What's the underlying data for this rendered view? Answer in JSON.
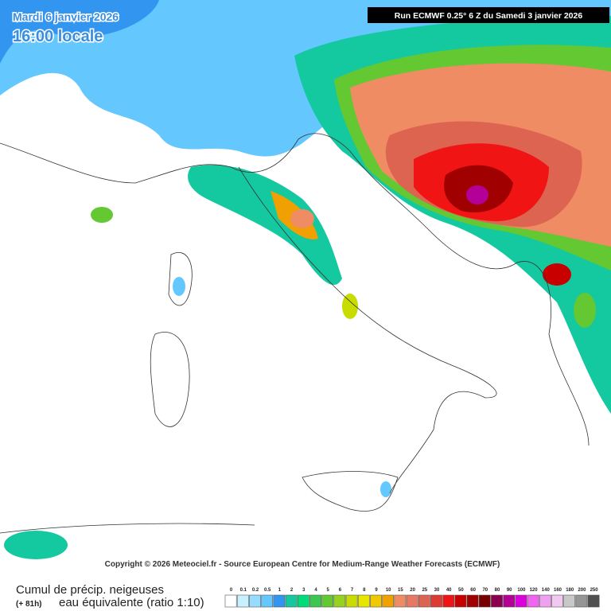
{
  "header": {
    "date": "Mardi 6 janvier 2026",
    "time": "16:00 locale",
    "run": "Run ECMWF 0.25° 6 Z du Samedi 3 janvier 2026"
  },
  "copyright": "Copyright © 2026 Meteociel.fr - Source European Centre for Medium-Range Weather Forecasts (ECMWF)",
  "legend": {
    "title": "Cumul de précip. neigeuses",
    "range": "(+ 81h)",
    "subtitle": "eau équivalente (ratio 1:10)",
    "items": [
      {
        "value": 0,
        "color": "#ffffff"
      },
      {
        "value": 0.1,
        "color": "#c8f0ff"
      },
      {
        "value": 0.2,
        "color": "#96dcff"
      },
      {
        "value": 0.5,
        "color": "#64c8ff"
      },
      {
        "value": 1,
        "color": "#3296f0"
      },
      {
        "value": 2,
        "color": "#14c8a0"
      },
      {
        "value": 3,
        "color": "#00dc78"
      },
      {
        "value": 4,
        "color": "#3cc850"
      },
      {
        "value": 5,
        "color": "#64c832"
      },
      {
        "value": 6,
        "color": "#96d21e"
      },
      {
        "value": 7,
        "color": "#c8dc00"
      },
      {
        "value": 8,
        "color": "#e6e600"
      },
      {
        "value": 9,
        "color": "#f0c800"
      },
      {
        "value": 10,
        "color": "#f0a000"
      },
      {
        "value": 15,
        "color": "#f08c64"
      },
      {
        "value": 20,
        "color": "#e67864"
      },
      {
        "value": 25,
        "color": "#dc6450"
      },
      {
        "value": 30,
        "color": "#dc3c32"
      },
      {
        "value": 40,
        "color": "#f01414"
      },
      {
        "value": 50,
        "color": "#c80000"
      },
      {
        "value": 60,
        "color": "#a00000"
      },
      {
        "value": 70,
        "color": "#780000"
      },
      {
        "value": 80,
        "color": "#8c0050"
      },
      {
        "value": 90,
        "color": "#b40096"
      },
      {
        "value": 100,
        "color": "#dc00dc"
      },
      {
        "value": 120,
        "color": "#f064f0"
      },
      {
        "value": 140,
        "color": "#f0a0f0"
      },
      {
        "value": 160,
        "color": "#f0c8f0"
      },
      {
        "value": 180,
        "color": "#c8c8c8"
      },
      {
        "value": 200,
        "color": "#969696"
      },
      {
        "value": 250,
        "color": "#505050"
      }
    ]
  }
}
